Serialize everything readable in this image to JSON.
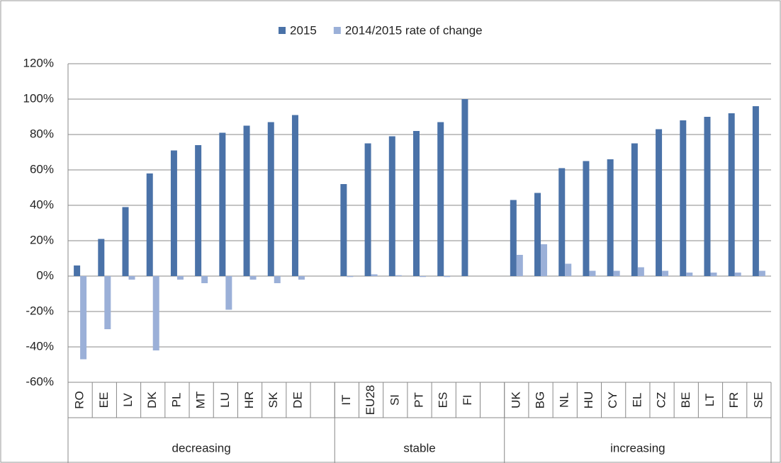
{
  "chart_data": {
    "type": "bar",
    "categories": [
      "RO",
      "EE",
      "LV",
      "DK",
      "PL",
      "MT",
      "LU",
      "HR",
      "SK",
      "DE",
      null,
      "IT",
      "EU28",
      "SI",
      "PT",
      "ES",
      "FI",
      null,
      "UK",
      "BG",
      "NL",
      "HU",
      "CY",
      "EL",
      "CZ",
      "BE",
      "LT",
      "FR",
      "SE"
    ],
    "groups": [
      {
        "label": "decreasing",
        "span": 11
      },
      {
        "label": "stable",
        "span": 7
      },
      {
        "label": "increasing",
        "span": 11
      }
    ],
    "series": [
      {
        "name": "2015",
        "color": "#4a72a8",
        "values": [
          6,
          21,
          39,
          58,
          71,
          74,
          81,
          85,
          87,
          91,
          null,
          52,
          75,
          79,
          82,
          87,
          100,
          null,
          43,
          47,
          61,
          65,
          66,
          75,
          83,
          88,
          90,
          92,
          96
        ]
      },
      {
        "name": "2014/2015 rate of change",
        "color": "#9bb0d8",
        "values": [
          -47,
          -30,
          -2,
          -42,
          -2,
          -4,
          -19,
          -2,
          -4,
          -2,
          null,
          -0.5,
          1,
          0.5,
          -0.5,
          -0.5,
          0,
          null,
          12,
          18,
          7,
          3,
          3,
          5,
          3,
          2,
          2,
          2,
          3
        ]
      }
    ],
    "ylim": [
      -60,
      120
    ],
    "yticks": [
      {
        "value": -60,
        "label": "-60%"
      },
      {
        "value": -40,
        "label": "-40%"
      },
      {
        "value": -20,
        "label": "-20%"
      },
      {
        "value": 0,
        "label": "0%"
      },
      {
        "value": 20,
        "label": "20%"
      },
      {
        "value": 40,
        "label": "40%"
      },
      {
        "value": 60,
        "label": "60%"
      },
      {
        "value": 80,
        "label": "80%"
      },
      {
        "value": 100,
        "label": "100%"
      },
      {
        "value": 120,
        "label": "120%"
      }
    ],
    "grid": true,
    "legend": "top"
  }
}
